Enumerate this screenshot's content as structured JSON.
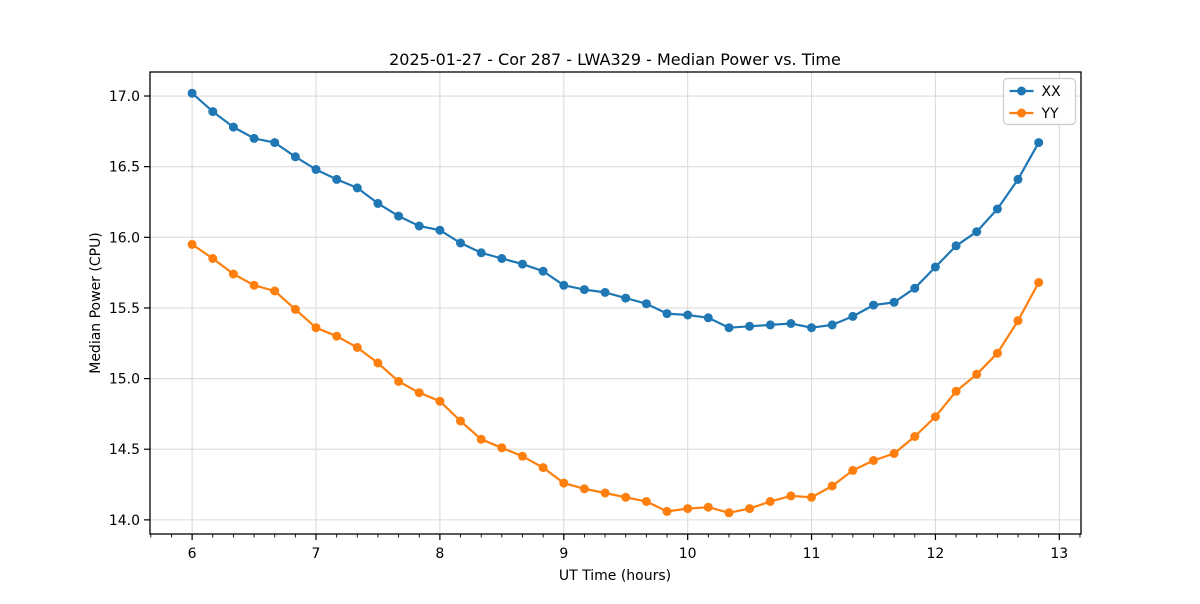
{
  "chart_data": {
    "type": "line",
    "title": "2025-01-27 - Cor 287 - LWA329 - Median Power vs. Time",
    "xlabel": "UT Time (hours)",
    "ylabel": "Median Power (CPU)",
    "xlim": [
      5.66,
      13.175
    ],
    "ylim": [
      13.9,
      17.17
    ],
    "xticks": [
      6,
      7,
      8,
      9,
      10,
      11,
      12,
      13
    ],
    "xtick_labels": [
      "6",
      "7",
      "8",
      "9",
      "10",
      "11",
      "12",
      "13"
    ],
    "yticks": [
      14.0,
      14.5,
      15.0,
      15.5,
      16.0,
      16.5,
      17.0
    ],
    "ytick_labels": [
      "14.0",
      "14.5",
      "15.0",
      "15.5",
      "16.0",
      "16.5",
      "17.0"
    ],
    "minor_tick_step_x": 0.166667,
    "grid": true,
    "legend_position": "upper right",
    "x": [
      6.0,
      6.1667,
      6.3333,
      6.5,
      6.6667,
      6.8333,
      7.0,
      7.1667,
      7.3333,
      7.5,
      7.6667,
      7.8333,
      8.0,
      8.1667,
      8.3333,
      8.5,
      8.6667,
      8.8333,
      9.0,
      9.1667,
      9.3333,
      9.5,
      9.6667,
      9.8333,
      10.0,
      10.1667,
      10.3333,
      10.5,
      10.6667,
      10.8333,
      11.0,
      11.1667,
      11.3333,
      11.5,
      11.6667,
      11.8333,
      12.0,
      12.1667,
      12.3333,
      12.5,
      12.6667,
      12.8333
    ],
    "series": [
      {
        "name": "XX",
        "color": "#1f77b4",
        "values": [
          17.02,
          16.89,
          16.78,
          16.7,
          16.67,
          16.57,
          16.48,
          16.41,
          16.35,
          16.24,
          16.15,
          16.08,
          16.05,
          15.96,
          15.89,
          15.85,
          15.81,
          15.76,
          15.66,
          15.63,
          15.61,
          15.57,
          15.53,
          15.46,
          15.45,
          15.43,
          15.36,
          15.37,
          15.38,
          15.39,
          15.36,
          15.38,
          15.44,
          15.52,
          15.54,
          15.64,
          15.79,
          15.94,
          16.04,
          16.2,
          16.41,
          16.67
        ]
      },
      {
        "name": "YY",
        "color": "#ff7f0e",
        "values": [
          15.95,
          15.85,
          15.74,
          15.66,
          15.62,
          15.49,
          15.36,
          15.3,
          15.22,
          15.11,
          14.98,
          14.9,
          14.84,
          14.7,
          14.57,
          14.51,
          14.45,
          14.37,
          14.26,
          14.22,
          14.19,
          14.16,
          14.13,
          14.06,
          14.08,
          14.09,
          14.05,
          14.08,
          14.13,
          14.17,
          14.16,
          14.24,
          14.35,
          14.42,
          14.47,
          14.59,
          14.73,
          14.91,
          15.03,
          15.18,
          15.41,
          15.68
        ]
      }
    ]
  },
  "style": {
    "background_color": "#ffffff",
    "grid_color": "#dcdcdc",
    "spine_color": "#000000",
    "tick_color": "#000000",
    "legend_border_color": "#cccccc",
    "legend_background": "#ffffff"
  }
}
